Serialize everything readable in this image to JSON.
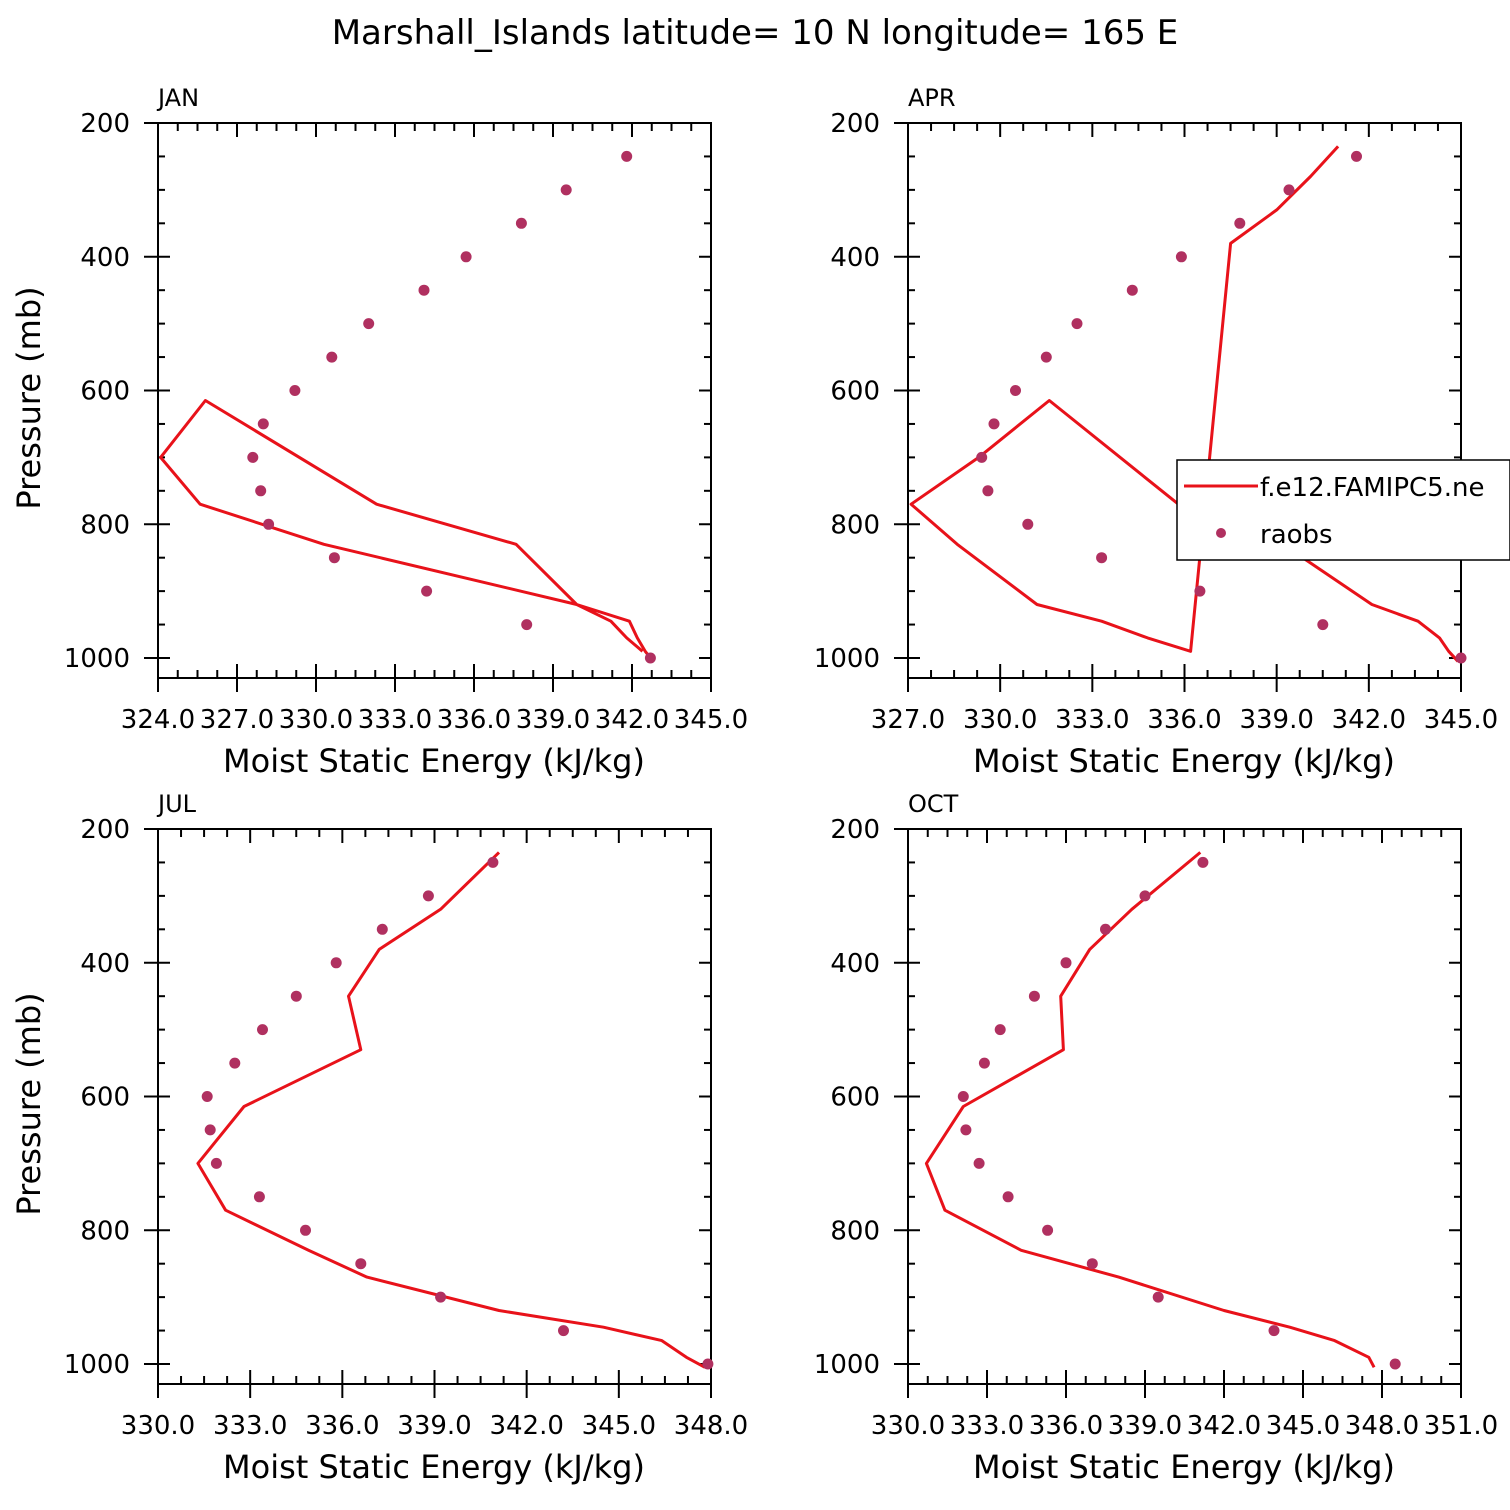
{
  "figure": {
    "title": "Marshall_Islands  latitude= 10 N longitude= 165 E"
  },
  "legend": {
    "model_label": "f.e12.FAMIPC5.ne",
    "obs_label": "raobs"
  },
  "colors": {
    "model": "#e8121a",
    "obs": "#b03060",
    "axis": "#000000"
  },
  "chart_data": [
    {
      "type": "line",
      "panel": "JAN",
      "title": "JAN",
      "xlabel": "Moist Static Energy (kJ/kg)",
      "ylabel": "Pressure (mb)",
      "xlim": [
        324,
        345
      ],
      "ylim": [
        1000,
        200
      ],
      "xticks": [
        324,
        327,
        330,
        333,
        336,
        339,
        342,
        345
      ],
      "xtick_labels": [
        "324.0",
        "327.0",
        "330.0",
        "333.0",
        "336.0",
        "339.0",
        "342.0",
        "345.0"
      ],
      "yticks": [
        200,
        400,
        600,
        800,
        1000
      ],
      "legend_shown": false,
      "series": [
        {
          "name": "f.e12.FAMIPC5.ne",
          "kind": "line",
          "x": [
            342.8,
            342.5,
            342.2,
            341.9,
            339.9,
            337.6,
            332.3,
            325.8,
            324.1,
            325.6,
            330.3,
            339.9,
            341.2,
            341.8,
            342.4
          ],
          "y": [
            1005,
            990,
            970,
            945,
            920,
            830,
            770,
            615,
            700,
            770,
            830,
            920,
            945,
            970,
            990
          ]
        },
        {
          "name": "raobs",
          "kind": "scatter",
          "x": [
            341.8,
            339.5,
            337.8,
            335.7,
            334.1,
            332.0,
            330.6,
            329.2,
            328.0,
            327.6,
            327.9,
            328.2,
            330.7,
            334.2,
            338.0,
            342.7
          ],
          "y": [
            250,
            300,
            350,
            400,
            450,
            500,
            550,
            600,
            650,
            700,
            750,
            800,
            850,
            900,
            950,
            1000
          ]
        }
      ]
    },
    {
      "type": "line",
      "panel": "APR",
      "title": "APR",
      "xlabel": "Moist Static Energy (kJ/kg)",
      "ylabel": "",
      "xlim": [
        327,
        345
      ],
      "ylim": [
        1000,
        200
      ],
      "xticks": [
        327,
        330,
        333,
        336,
        339,
        342,
        345
      ],
      "xtick_labels": [
        "327.0",
        "330.0",
        "333.0",
        "336.0",
        "339.0",
        "342.0",
        "345.0"
      ],
      "yticks": [
        200,
        400,
        600,
        800,
        1000
      ],
      "legend_shown": true,
      "series": [
        {
          "name": "f.e12.FAMIPC5.ne",
          "kind": "line",
          "x": [
            344.9,
            344.6,
            344.3,
            343.6,
            342.1,
            339.2,
            335.8,
            331.6,
            329.3,
            327.1,
            328.6,
            331.2,
            333.3,
            334.8,
            336.2,
            337.5,
            339.0,
            340.1,
            341.0
          ],
          "y": [
            1005,
            990,
            970,
            945,
            920,
            830,
            770,
            615,
            700,
            770,
            830,
            920,
            945,
            970,
            990,
            380,
            330,
            280,
            235
          ]
        },
        {
          "name": "raobs",
          "kind": "scatter",
          "x": [
            341.6,
            339.4,
            337.8,
            335.9,
            334.3,
            332.5,
            331.5,
            330.5,
            329.8,
            329.4,
            329.6,
            330.9,
            333.3,
            336.5,
            340.5,
            345.0
          ],
          "y": [
            250,
            300,
            350,
            400,
            450,
            500,
            550,
            600,
            650,
            700,
            750,
            800,
            850,
            900,
            950,
            1000
          ]
        }
      ]
    },
    {
      "type": "line",
      "panel": "JUL",
      "title": "JUL",
      "xlabel": "Moist Static Energy (kJ/kg)",
      "ylabel": "Pressure (mb)",
      "xlim": [
        330,
        348
      ],
      "ylim": [
        1000,
        200
      ],
      "xticks": [
        330,
        333,
        336,
        339,
        342,
        345,
        348
      ],
      "xtick_labels": [
        "330.0",
        "333.0",
        "336.0",
        "339.0",
        "342.0",
        "345.0",
        "348.0"
      ],
      "yticks": [
        200,
        400,
        600,
        800,
        1000
      ],
      "legend_shown": false,
      "series": [
        {
          "name": "f.e12.FAMIPC5.ne",
          "kind": "line",
          "x": [
            347.8,
            347.2,
            346.4,
            344.5,
            341.1,
            336.8,
            334.9,
            332.2,
            331.3,
            332.8,
            336.6,
            336.2,
            337.2,
            339.2,
            341.1
          ],
          "y": [
            1005,
            990,
            965,
            945,
            920,
            870,
            830,
            770,
            700,
            615,
            530,
            450,
            380,
            320,
            235
          ]
        },
        {
          "name": "raobs",
          "kind": "scatter",
          "x": [
            340.9,
            338.8,
            337.3,
            335.8,
            334.5,
            333.4,
            332.5,
            331.6,
            331.7,
            331.9,
            333.3,
            334.8,
            336.6,
            339.2,
            343.2,
            347.9
          ],
          "y": [
            250,
            300,
            350,
            400,
            450,
            500,
            550,
            600,
            650,
            700,
            750,
            800,
            850,
            900,
            950,
            1000
          ]
        }
      ]
    },
    {
      "type": "line",
      "panel": "OCT",
      "title": "OCT",
      "xlabel": "Moist Static Energy (kJ/kg)",
      "ylabel": "",
      "xlim": [
        330,
        351
      ],
      "ylim": [
        1000,
        200
      ],
      "xticks": [
        330,
        333,
        336,
        339,
        342,
        345,
        348,
        351
      ],
      "xtick_labels": [
        "330.0",
        "333.0",
        "336.0",
        "339.0",
        "342.0",
        "345.0",
        "348.0",
        "351.0"
      ],
      "yticks": [
        200,
        400,
        600,
        800,
        1000
      ],
      "legend_shown": false,
      "series": [
        {
          "name": "f.e12.FAMIPC5.ne",
          "kind": "line",
          "x": [
            347.7,
            347.5,
            346.2,
            344.5,
            342.0,
            338.0,
            334.3,
            331.4,
            330.7,
            332.1,
            335.9,
            335.8,
            336.9,
            338.5,
            341.1
          ],
          "y": [
            1005,
            990,
            965,
            945,
            920,
            870,
            830,
            770,
            700,
            615,
            530,
            450,
            380,
            320,
            235
          ]
        },
        {
          "name": "raobs",
          "kind": "scatter",
          "x": [
            341.2,
            339.0,
            337.5,
            336.0,
            334.8,
            333.5,
            332.9,
            332.1,
            332.2,
            332.7,
            333.8,
            335.3,
            337.0,
            339.5,
            343.9,
            348.5
          ],
          "y": [
            250,
            300,
            350,
            400,
            450,
            500,
            550,
            600,
            650,
            700,
            750,
            800,
            850,
            900,
            950,
            1000
          ]
        }
      ]
    }
  ]
}
